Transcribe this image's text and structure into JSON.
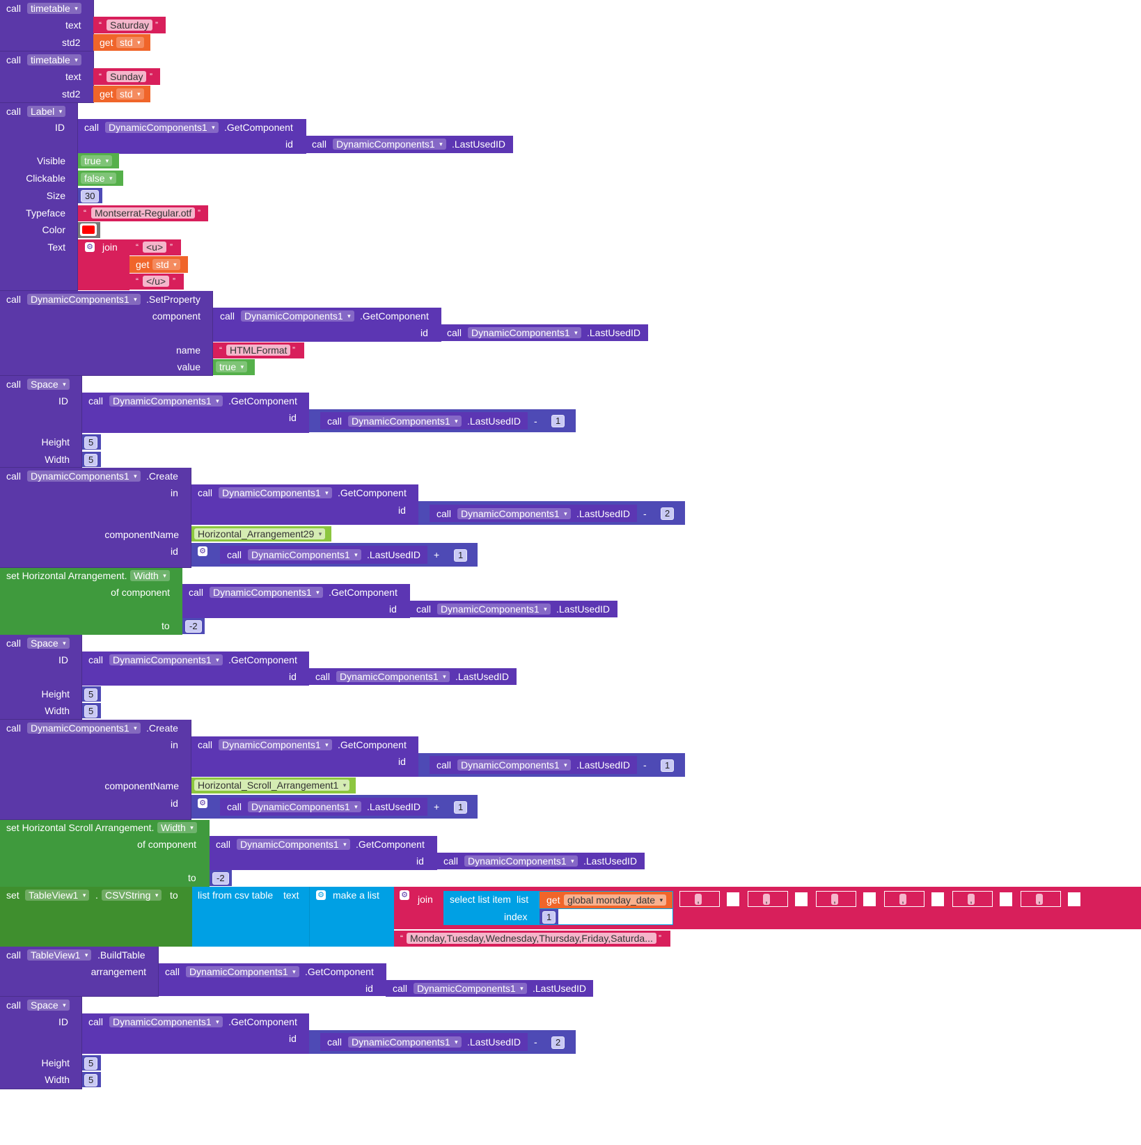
{
  "kw": {
    "call": "call",
    "get": "get",
    "set": "set",
    "join": "join",
    "to": "to",
    "minus": "-",
    "plus": "+",
    "index": "index",
    "list": "list"
  },
  "components": {
    "dc": "DynamicComponents1",
    "label": "Label",
    "space": "Space",
    "timetable": "timetable",
    "tableview": "TableView1"
  },
  "methods": {
    "getcomp": ".GetComponent",
    "lastid": ".LastUsedID",
    "setprop": ".SetProperty",
    "create": ".Create",
    "buildtable": ".BuildTable"
  },
  "params": {
    "text": "text",
    "std2": "std2",
    "id": "ID",
    "idl": "id",
    "visible": "Visible",
    "clickable": "Clickable",
    "size": "Size",
    "typeface": "Typeface",
    "color": "Color",
    "textcap": "Text",
    "component": "component",
    "name": "name",
    "value": "value",
    "height": "Height",
    "width": "Width",
    "in": "in",
    "componentName": "componentName",
    "ofcomponent": "of component",
    "arrangement": "arrangement",
    "csvtext": "text"
  },
  "values": {
    "saturday": "Saturday",
    "sunday": "Sunday",
    "std": "std",
    "true": "true",
    "false": "false",
    "size30": "30",
    "font": "Montserrat-Regular.otf",
    "u_open": "<u>",
    "u_close": "</u>",
    "htmlformat": "HTMLFormat",
    "five": "5",
    "one": "1",
    "two": "2",
    "neg2": "-2",
    "ha29": "Horizontal_Arrangement29",
    "hsa1": "Horizontal_Scroll_Arrangement1",
    "days": "Monday,Tuesday,Wednesday,Thursday,Friday,Saturda...",
    "globalmon": "global monday_date",
    "comma": ","
  },
  "setters": {
    "ha": "set Horizontal Arrangement.",
    "hsa": "set Horizontal Scroll Arrangement.",
    "widthprop": "Width",
    "csvprop": "CSVString",
    "listcsv": "list from csv table",
    "makelist": "make a list",
    "selectitem": "select list item"
  },
  "colors": {
    "procedure": "#5b38a8",
    "math": "#4e4ab5",
    "text": "#d81f5b",
    "variable": "#f0652a",
    "logic": "#55b04a",
    "setter": "#3f9a3d",
    "list": "#00a0e4",
    "swatch": "#ff0000"
  }
}
